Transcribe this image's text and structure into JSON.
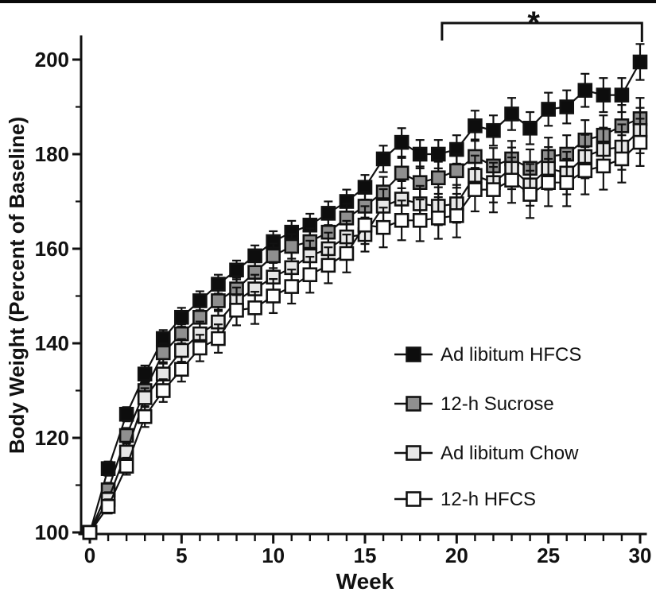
{
  "figure": {
    "kind": "scientific line chart with error bars",
    "background": "#ffffff",
    "border_top_color": "#0a0a0a"
  },
  "chart_data": {
    "type": "line",
    "title": "",
    "xlabel": "Week",
    "ylabel": "Body Weight (Percent of Baseline)",
    "xlim": [
      0,
      30
    ],
    "ylim": [
      100,
      205
    ],
    "x_major_ticks": [
      0,
      5,
      10,
      15,
      20,
      25,
      30
    ],
    "x_minor_tick_every": 1,
    "y_major_ticks": [
      100,
      120,
      140,
      160,
      180,
      200
    ],
    "y_minor_tick_every": 10,
    "grid": false,
    "legend_position": "inside-lower-right",
    "x": [
      0,
      1,
      2,
      3,
      4,
      5,
      6,
      7,
      8,
      9,
      10,
      11,
      12,
      13,
      14,
      15,
      16,
      17,
      18,
      19,
      20,
      21,
      22,
      23,
      24,
      25,
      26,
      27,
      28,
      29,
      30
    ],
    "series": [
      {
        "name": "Ad libitum HFCS",
        "marker": "filled-black-square",
        "fill": "#0d0d0d",
        "values": [
          100,
          113.5,
          125,
          133.5,
          141,
          145.5,
          149,
          152.5,
          155.5,
          158.5,
          161.5,
          163.5,
          165,
          167.5,
          170,
          173,
          179,
          182.5,
          180,
          180,
          181,
          186,
          185,
          188.5,
          185.5,
          189.5,
          190,
          193.5,
          192.5,
          192.5,
          199.5
        ],
        "errors": [
          0,
          1.5,
          1.5,
          1.8,
          1.8,
          2,
          2,
          2,
          2,
          2.2,
          2.2,
          2.4,
          2.4,
          2.5,
          2.5,
          2.6,
          2.8,
          3,
          3,
          3,
          3,
          3.2,
          3.2,
          3.4,
          3.4,
          3.5,
          3.5,
          3.5,
          3.6,
          3.6,
          3.8
        ]
      },
      {
        "name": "12-h Sucrose",
        "marker": "gray-square",
        "fill": "#8f8f8f",
        "values": [
          100,
          109,
          120.5,
          130,
          138,
          142,
          145.5,
          149,
          151.5,
          155,
          158.5,
          160.5,
          161.5,
          163.5,
          166.5,
          169,
          172,
          176,
          174,
          175,
          176.5,
          179.5,
          177.5,
          179,
          177,
          179.5,
          180,
          183,
          184,
          186,
          187.5
        ],
        "errors": [
          0,
          1.5,
          1.6,
          1.8,
          2,
          2,
          2.2,
          2.2,
          2.4,
          2.4,
          2.6,
          2.6,
          2.8,
          2.8,
          3,
          3,
          3.2,
          3.2,
          3.4,
          3.4,
          3.6,
          3.6,
          3.8,
          3.8,
          4,
          4,
          4,
          4.2,
          4.2,
          4.4,
          4.4
        ]
      },
      {
        "name": "Ad libitum Chow",
        "marker": "light-gray-square",
        "fill": "#e7e7e7",
        "values": [
          100,
          107,
          117,
          128.5,
          133.5,
          138.5,
          142,
          144.5,
          149,
          151.5,
          154,
          156,
          158.5,
          160,
          162.5,
          163,
          169,
          170.5,
          169.5,
          169,
          169.5,
          175.5,
          174,
          177,
          173.5,
          177,
          176,
          179.5,
          181,
          181.5,
          185
        ],
        "errors": [
          0,
          1.5,
          1.8,
          2,
          2.2,
          2.4,
          2.6,
          2.6,
          2.8,
          3,
          3,
          3.2,
          3.2,
          3.4,
          3.4,
          3.6,
          3.6,
          3.8,
          3.8,
          4,
          4,
          4.2,
          4.2,
          4.4,
          4.4,
          4.5,
          4.5,
          4.6,
          4.6,
          4.8,
          4.8
        ]
      },
      {
        "name": "12-h HFCS",
        "marker": "open-white-square",
        "fill": "#ffffff",
        "values": [
          100,
          105.5,
          114,
          124.5,
          130,
          134.5,
          139,
          141,
          147,
          147.5,
          150,
          152,
          154.5,
          156.5,
          159,
          165,
          164.5,
          166,
          166,
          166.5,
          167,
          172.5,
          172.5,
          174.5,
          171.5,
          174,
          174,
          176.5,
          177.5,
          179,
          182.5
        ],
        "errors": [
          0,
          1.5,
          1.8,
          2.2,
          2.4,
          2.6,
          2.8,
          3,
          3.2,
          3.4,
          3.6,
          3.6,
          3.8,
          3.8,
          4,
          4,
          4.2,
          4.2,
          4.4,
          4.4,
          4.6,
          4.6,
          4.8,
          4.8,
          5,
          5,
          5,
          5,
          5,
          5,
          5
        ]
      }
    ],
    "annotation": {
      "text": "*",
      "bracket_from_week": 19.2,
      "bracket_to_week": 30.1,
      "star_week": 24.2
    }
  }
}
